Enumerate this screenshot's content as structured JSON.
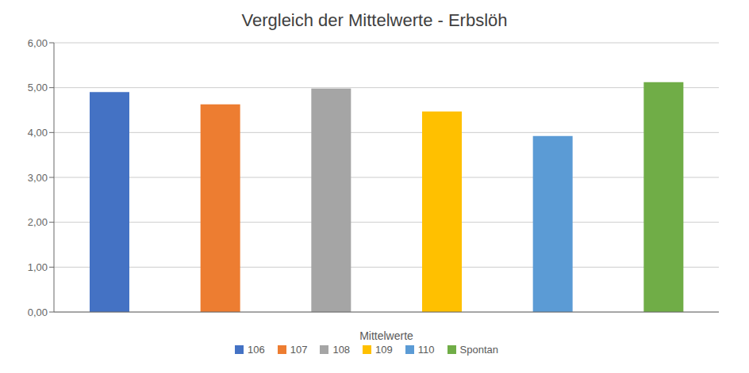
{
  "chart_data": {
    "type": "bar",
    "title": "Vergleich der Mittelwerte - Erbslöh",
    "xlabel": "Mittelwerte",
    "categories": [
      "106",
      "107",
      "108",
      "109",
      "110",
      "Spontan"
    ],
    "values": [
      4.9,
      4.63,
      4.98,
      4.47,
      3.92,
      5.12
    ],
    "colors": [
      "#4472C4",
      "#ED7D31",
      "#A5A5A5",
      "#FFC000",
      "#5B9BD5",
      "#70AD47"
    ],
    "ylim": [
      0,
      6.0
    ],
    "yticks": [
      {
        "value": 0.0,
        "label": "0,00"
      },
      {
        "value": 1.0,
        "label": "1,00"
      },
      {
        "value": 2.0,
        "label": "2,00"
      },
      {
        "value": 3.0,
        "label": "3,00"
      },
      {
        "value": 4.0,
        "label": "4,00"
      },
      {
        "value": 5.0,
        "label": "5,00"
      },
      {
        "value": 6.0,
        "label": "6,00"
      }
    ],
    "grid": true,
    "legend": "bottom",
    "tick_labels": "y"
  }
}
